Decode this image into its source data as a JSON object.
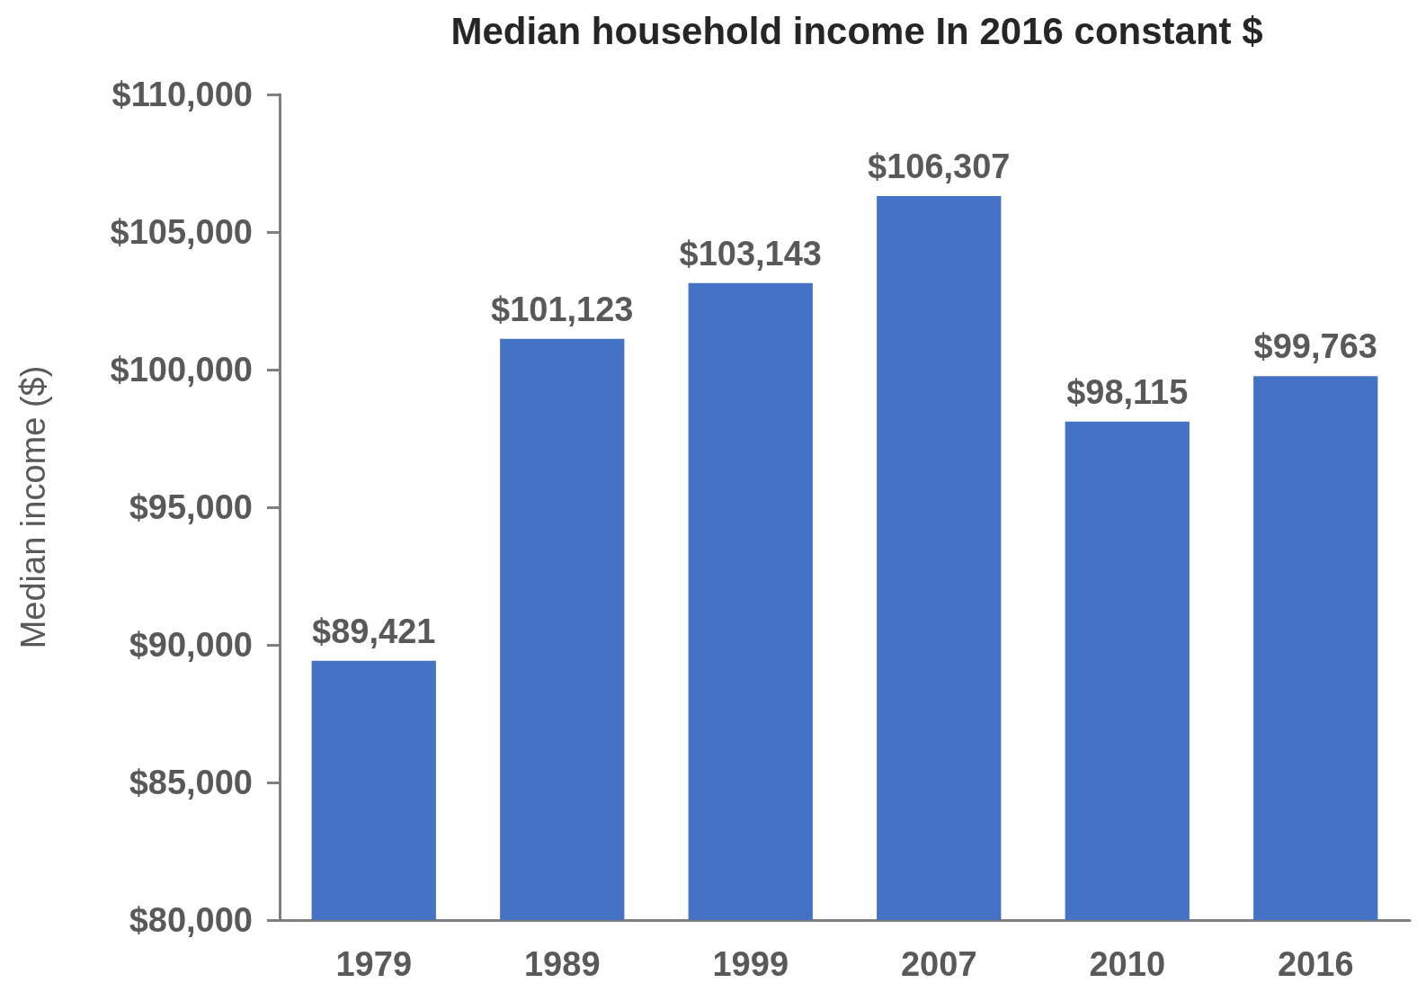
{
  "chart_data": {
    "type": "bar",
    "title": "Median household income In 2016 constant $",
    "ylabel": "Median income ($)",
    "categories": [
      "1979",
      "1989",
      "1999",
      "2007",
      "2010",
      "2016"
    ],
    "values": [
      89421,
      101123,
      103143,
      106307,
      98115,
      99763
    ],
    "value_labels": [
      "$89,421",
      "$101,123",
      "$103,143",
      "$106,307",
      "$98,115",
      "$99,763"
    ],
    "color": "#4472c4",
    "ylim": [
      80000,
      110000
    ],
    "yticks": [
      {
        "value": 80000,
        "label": "$80,000"
      },
      {
        "value": 85000,
        "label": "$85,000"
      },
      {
        "value": 90000,
        "label": "$90,000"
      },
      {
        "value": 95000,
        "label": "$95,000"
      },
      {
        "value": 100000,
        "label": "$100,000"
      },
      {
        "value": 105000,
        "label": "$105,000"
      },
      {
        "value": 110000,
        "label": "$110,000"
      }
    ],
    "grid": false
  }
}
